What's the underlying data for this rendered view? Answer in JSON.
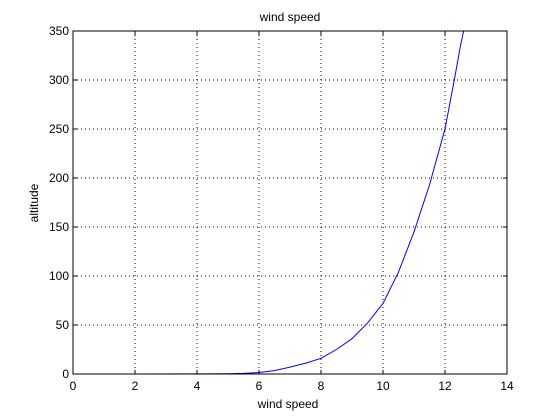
{
  "chart_data": {
    "type": "line",
    "title": "wind speed",
    "xlabel": "wind speed",
    "ylabel": "altitude",
    "xlim": [
      0,
      14
    ],
    "ylim": [
      0,
      350
    ],
    "xticks": [
      0,
      2,
      4,
      6,
      8,
      10,
      12,
      14
    ],
    "yticks": [
      0,
      50,
      100,
      150,
      200,
      250,
      300,
      350
    ],
    "grid": true,
    "series": [
      {
        "color": "#0000ff",
        "x": [
          0,
          2,
          4,
          5,
          5.5,
          6,
          6.5,
          7,
          7.5,
          8,
          8.5,
          9,
          9.5,
          10,
          10.5,
          11,
          11.5,
          12,
          12.3,
          12.5,
          12.6
        ],
        "y": [
          0,
          0,
          0.1,
          0.3,
          0.6,
          1.5,
          3.5,
          7,
          11,
          16,
          25,
          36,
          52,
          72,
          104,
          145,
          193,
          250,
          300,
          335,
          350
        ]
      }
    ]
  }
}
